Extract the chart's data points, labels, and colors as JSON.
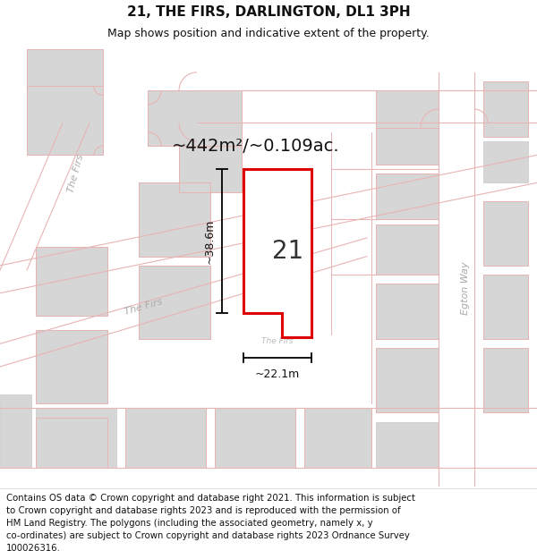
{
  "title": "21, THE FIRS, DARLINGTON, DL1 3PH",
  "subtitle": "Map shows position and indicative extent of the property.",
  "footer": "Contains OS data © Crown copyright and database right 2021. This information is subject\nto Crown copyright and database rights 2023 and is reproduced with the permission of\nHM Land Registry. The polygons (including the associated geometry, namely x, y\nco-ordinates) are subject to Crown copyright and database rights 2023 Ordnance Survey\n100026316.",
  "area_label": "~442m²/~0.109ac.",
  "height_label": "~38.6m",
  "width_label": "~22.1m",
  "property_number": "21",
  "map_bg": "#f0efef",
  "road_fill": "#ffffff",
  "building_fill": "#d6d6d6",
  "building_edge": "#c8c8c8",
  "pink": "#e8b4b4",
  "red": "#dd0000",
  "black": "#111111",
  "dim_grey": "#777777",
  "road_label_color": "#aaaaaa",
  "title_fontsize": 11,
  "subtitle_fontsize": 9,
  "footer_fontsize": 7.3,
  "area_fontsize": 14,
  "dim_fontsize": 9,
  "road_label_fontsize": 8,
  "num_fontsize": 20
}
